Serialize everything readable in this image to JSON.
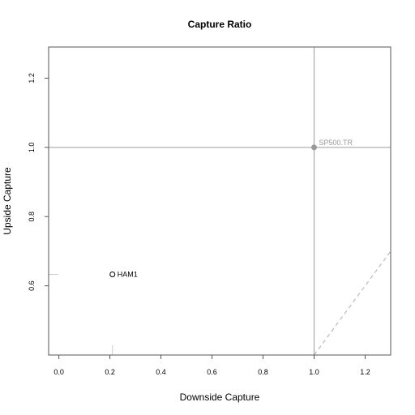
{
  "chart_data": {
    "type": "scatter",
    "title": "Capture Ratio",
    "xlabel": "Downside Capture",
    "ylabel": "Upside Capture",
    "xlim": [
      -0.04,
      1.3
    ],
    "ylim": [
      0.4,
      1.29
    ],
    "xticks": [
      0.0,
      0.2,
      0.4,
      0.6,
      0.8,
      1.0,
      1.2
    ],
    "yticks": [
      0.6,
      0.8,
      1.0,
      1.2
    ],
    "xtick_labels": [
      "0.0",
      "0.2",
      "0.4",
      "0.6",
      "0.8",
      "1.0",
      "1.2"
    ],
    "ytick_labels": [
      "0.6",
      "0.8",
      "1.0",
      "1.2"
    ],
    "points": [
      {
        "name": "HAM1",
        "x": 0.21,
        "y": 0.633,
        "style": "open-circle",
        "color": "#000000"
      },
      {
        "name": "SP500.TR",
        "x": 1.0,
        "y": 1.0,
        "style": "filled-circle",
        "color": "#999999"
      }
    ],
    "reference_lines": {
      "vertical_x": 1.0,
      "horizontal_y": 1.0,
      "diagonal": {
        "type": "dashed",
        "slope": 1,
        "intercept": -0.6
      }
    },
    "grid": false,
    "legend": "none"
  }
}
